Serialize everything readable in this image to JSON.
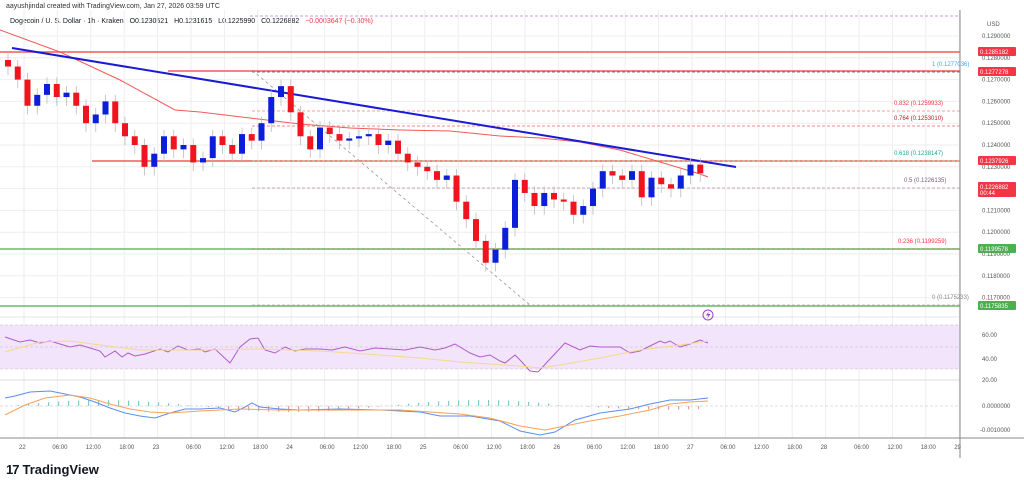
{
  "header": {
    "credit": "aayushjindal created with TradingView.com, Jan 27, 2026 03:59 UTC",
    "symbol": "Dogecoin / U. S. Dollar · 1h · Kraken",
    "open": "O0.1230521",
    "high": "H0.1231615",
    "low": "L0.1225990",
    "close": "C0.1226882",
    "change": "−0.0003647 (−0.30%)"
  },
  "price_axis": {
    "currency": "USD",
    "ticks": [
      "0.1290000",
      "0.1280000",
      "0.1270000",
      "0.1260000",
      "0.1250000",
      "0.1240000",
      "0.1230000",
      "0.1220000",
      "0.1210000",
      "0.1200000",
      "0.1190000",
      "0.1180000",
      "0.1170000"
    ],
    "tags": [
      {
        "value": "0.1285182",
        "color": "#f23645"
      },
      {
        "value": "0.1277278",
        "color": "#f23645"
      },
      {
        "value": "0.1237926",
        "color": "#f23645"
      },
      {
        "value": "0.1226882",
        "sub": "00:44",
        "color": "#f23645"
      },
      {
        "value": "0.1199578",
        "color": "#4caf50"
      },
      {
        "value": "0.1175835",
        "color": "#4caf50"
      }
    ]
  },
  "rsi_axis": {
    "ticks": [
      "60.00",
      "40.00",
      "20.00"
    ]
  },
  "macd_axis": {
    "ticks": [
      "0.0000000",
      "-0.0010000"
    ]
  },
  "time_axis": {
    "ticks": [
      "22",
      "06:00",
      "12:00",
      "18:00",
      "23",
      "06:00",
      "12:00",
      "18:00",
      "24",
      "06:00",
      "12:00",
      "18:00",
      "25",
      "06:00",
      "12:00",
      "18:00",
      "26",
      "06:00",
      "12:00",
      "18:00",
      "27",
      "06:00",
      "12:00",
      "18:00",
      "28",
      "06:00",
      "12:00",
      "18:00",
      "29"
    ]
  },
  "fib_levels": [
    {
      "ratio": "1",
      "label": "1 (0.1277036)",
      "color": "#42a5f5"
    },
    {
      "ratio": "0.832",
      "label": "0.832 (0.1259933)",
      "color": "#f23645"
    },
    {
      "ratio": "0.764",
      "label": "0.764 (0.1253010)",
      "color": "#b71c1c"
    },
    {
      "ratio": "0.618",
      "label": "0.618 (0.1238147)",
      "color": "#26a69a"
    },
    {
      "ratio": "0.5",
      "label": "0.5 (0.1226135)",
      "color": "#7e5c7e"
    },
    {
      "ratio": "0.236",
      "label": "0.236 (0.1199259)",
      "color": "#f23645"
    },
    {
      "ratio": "0",
      "label": "0 (0.1175233)",
      "color": "#888888"
    }
  ],
  "branding": {
    "logo_mark": "17",
    "logo_text": "TradingView"
  },
  "colors": {
    "up_candle": "#0d1ed8",
    "down_candle": "#f0141e",
    "trendline": "#1a1ad6",
    "ma_line": "#f05a5a",
    "horizontal_resistance": "#f05a5a",
    "support": "#66bb6a",
    "rsi_line": "#b05cc8",
    "rsi_ma": "#f5d98a",
    "rsi_band": "#f1e4fb",
    "macd_line": "#5b8def",
    "signal_line": "#f5a25a"
  },
  "chart_data": {
    "type": "candlestick",
    "title": "Dogecoin / U. S. Dollar · 1h · Kraken",
    "xlabel": "",
    "ylabel": "USD",
    "ylim": [
      0.117,
      0.1295
    ],
    "x_range": [
      "Jan 22",
      "Jan 29"
    ],
    "ohlc_last": {
      "open": 0.1230521,
      "high": 0.1231615,
      "low": 0.122599,
      "close": 0.1226882,
      "change": -0.0003647,
      "change_pct": -0.3
    },
    "approx_closes": [
      0.1276,
      0.127,
      0.1258,
      0.1263,
      0.1268,
      0.1262,
      0.1264,
      0.1258,
      0.125,
      0.1254,
      0.126,
      0.125,
      0.1244,
      0.124,
      0.123,
      0.1236,
      0.1244,
      0.1238,
      0.124,
      0.1232,
      0.1234,
      0.1244,
      0.124,
      0.1236,
      0.1245,
      0.1242,
      0.125,
      0.1262,
      0.1267,
      0.1255,
      0.1244,
      0.1238,
      0.1248,
      0.1245,
      0.1242,
      0.1243,
      0.1244,
      0.1245,
      0.124,
      0.1242,
      0.1236,
      0.1232,
      0.123,
      0.1228,
      0.1224,
      0.1226,
      0.1214,
      0.1206,
      0.1196,
      0.1186,
      0.1192,
      0.1202,
      0.1224,
      0.1218,
      0.1212,
      0.1218,
      0.1215,
      0.1214,
      0.1208,
      0.1212,
      0.122,
      0.1228,
      0.1226,
      0.1224,
      0.1228,
      0.1216,
      0.1225,
      0.1222,
      0.122,
      0.1226,
      0.1231,
      0.1227
    ],
    "annotations": [
      {
        "type": "trendline",
        "desc": "descending resistance trendline",
        "color": "#1a1ad6"
      },
      {
        "type": "hline",
        "value": 0.1285182,
        "label": "resistance"
      },
      {
        "type": "hline",
        "value": 0.1277278,
        "label": "resistance"
      },
      {
        "type": "hline",
        "value": 0.1237926,
        "label": "resistance"
      },
      {
        "type": "hline",
        "value": 0.1199578,
        "label": "support"
      },
      {
        "type": "hline",
        "value": 0.1175835,
        "label": "support"
      },
      {
        "type": "fib_retracement",
        "from": 0.1277036,
        "to": 0.1175233
      },
      {
        "type": "line",
        "desc": "moving average (100)"
      }
    ],
    "indicators": [
      {
        "name": "RSI",
        "levels": [
          70,
          50,
          30
        ],
        "axis_ticks": [
          60,
          40,
          20
        ],
        "last_value_approx": 58
      },
      {
        "name": "MACD",
        "axis_ticks": [
          0.0,
          -0.001
        ]
      }
    ],
    "grid": true
  }
}
